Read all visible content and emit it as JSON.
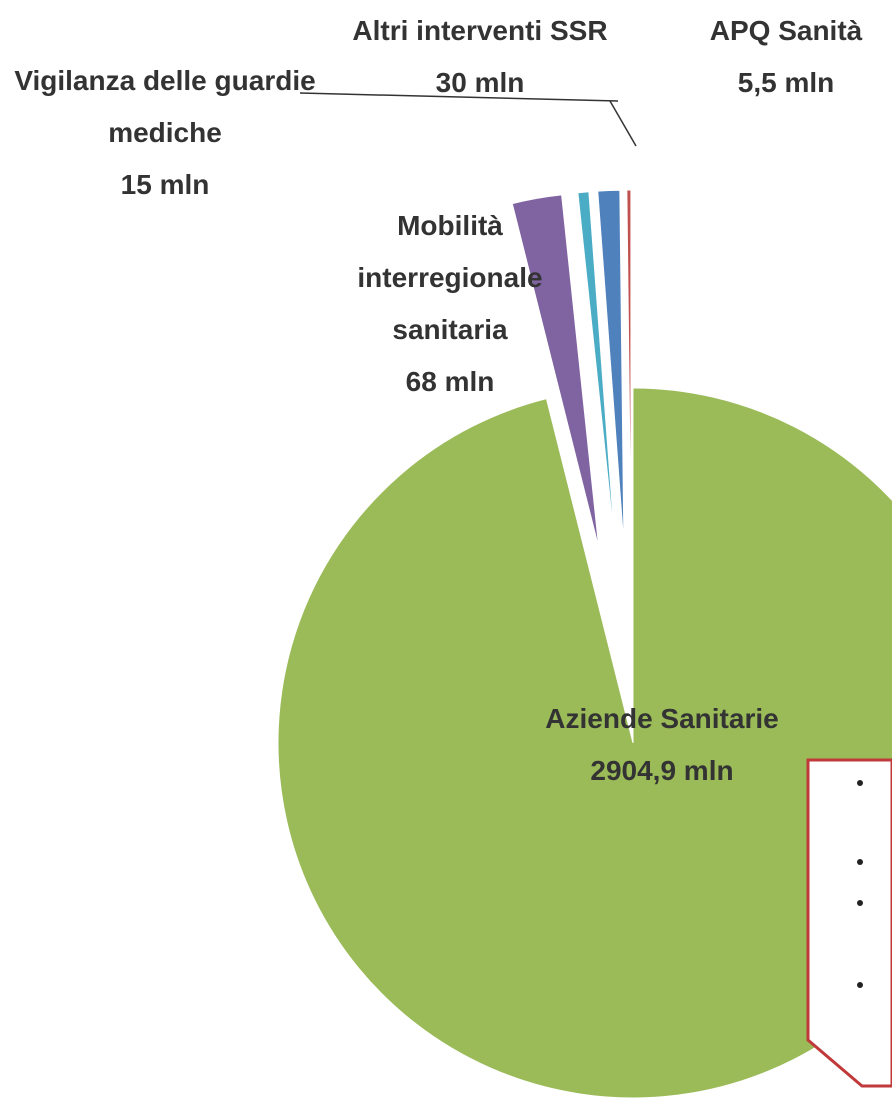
{
  "chart_data": {
    "type": "pie",
    "categories": [
      "Aziende Sanitarie",
      "Mobilità interregionale sanitaria",
      "Vigilanza delle guardie mediche",
      "Altri interventi SSR",
      "APQ Sanità"
    ],
    "values": [
      2904.9,
      68,
      15,
      30,
      5.5
    ],
    "value_labels": [
      "2904,9 mln",
      "68 mln",
      "15 mln",
      "30 mln",
      "5,5 mln"
    ],
    "colors": [
      "#9bbb59",
      "#8064a2",
      "#4bacc6",
      "#4f81bd",
      "#c0504d"
    ]
  }
}
